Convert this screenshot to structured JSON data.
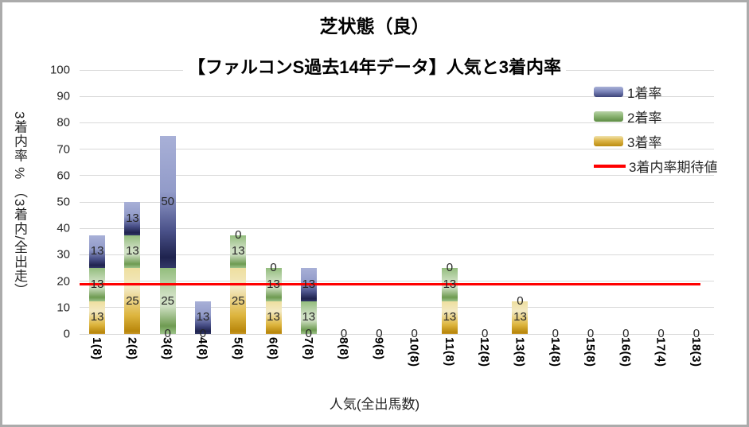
{
  "window": {
    "border_color": "#ABABAB",
    "background_color": "#FFFFFF"
  },
  "chart_data": {
    "type": "bar",
    "stacked": true,
    "title": "芝状態（良）",
    "subtitle": "【ファルコンS過去14年データ】人気と3着内率",
    "xlabel": "人気(全出馬数)",
    "ylabel": "3着内率 % （3着内/全出走）",
    "ylim": [
      0,
      100
    ],
    "ytick_step": 10,
    "yticks": [
      "100",
      "90",
      "80",
      "70",
      "60",
      "50",
      "40",
      "30",
      "20",
      "10",
      "0"
    ],
    "grid": true,
    "gridline_color": "#D9D9D9",
    "legend_position": "top-right",
    "categories": [
      "1(8)",
      "2(8)",
      "3(8)",
      "4(8)",
      "5(8)",
      "6(8)",
      "7(8)",
      "8(8)",
      "9(8)",
      "10(8)",
      "11(8)",
      "12(8)",
      "13(8)",
      "14(8)",
      "15(8)",
      "16(6)",
      "17(4)",
      "18(3)"
    ],
    "series": [
      {
        "key": "win3",
        "name": "3着率",
        "color": "#C9971D",
        "values": [
          12.5,
          25,
          0,
          0,
          25,
          12.5,
          0,
          0,
          0,
          0,
          12.5,
          0,
          12.5,
          0,
          0,
          0,
          0,
          0
        ],
        "labels": [
          "13",
          "25",
          "0",
          "0",
          "25",
          "13",
          "0",
          "0",
          "0",
          "0",
          "13",
          "0",
          "13",
          "0",
          "0",
          "0",
          "0",
          "0"
        ]
      },
      {
        "key": "win2",
        "name": "2着率",
        "color": "#77A45C",
        "values": [
          12.5,
          12.5,
          25,
          0,
          12.5,
          12.5,
          12.5,
          0,
          0,
          0,
          12.5,
          0,
          0,
          0,
          0,
          0,
          0,
          0
        ],
        "labels": [
          "13",
          "13",
          "25",
          "0",
          "13",
          "13",
          "13",
          "0",
          "0",
          "0",
          "13",
          "0",
          "0",
          "0",
          "0",
          "0",
          "0",
          "0"
        ]
      },
      {
        "key": "win1",
        "name": "1着率",
        "color": "#5C659E",
        "values": [
          12.5,
          12.5,
          50,
          12.5,
          0,
          0,
          12.5,
          0,
          0,
          0,
          0,
          0,
          0,
          0,
          0,
          0,
          0,
          0
        ],
        "labels": [
          "13",
          "13",
          "50",
          "13",
          "0",
          "0",
          "13",
          "0",
          "0",
          "0",
          "0",
          "0",
          "0",
          "0",
          "0",
          "0",
          "0",
          "0"
        ]
      }
    ],
    "expected_line": {
      "name": "3着内率期待値",
      "value": 18.8,
      "color": "#FF0000"
    },
    "legend": [
      "1着率",
      "2着率",
      "3着率",
      "3着内率期待値"
    ]
  }
}
